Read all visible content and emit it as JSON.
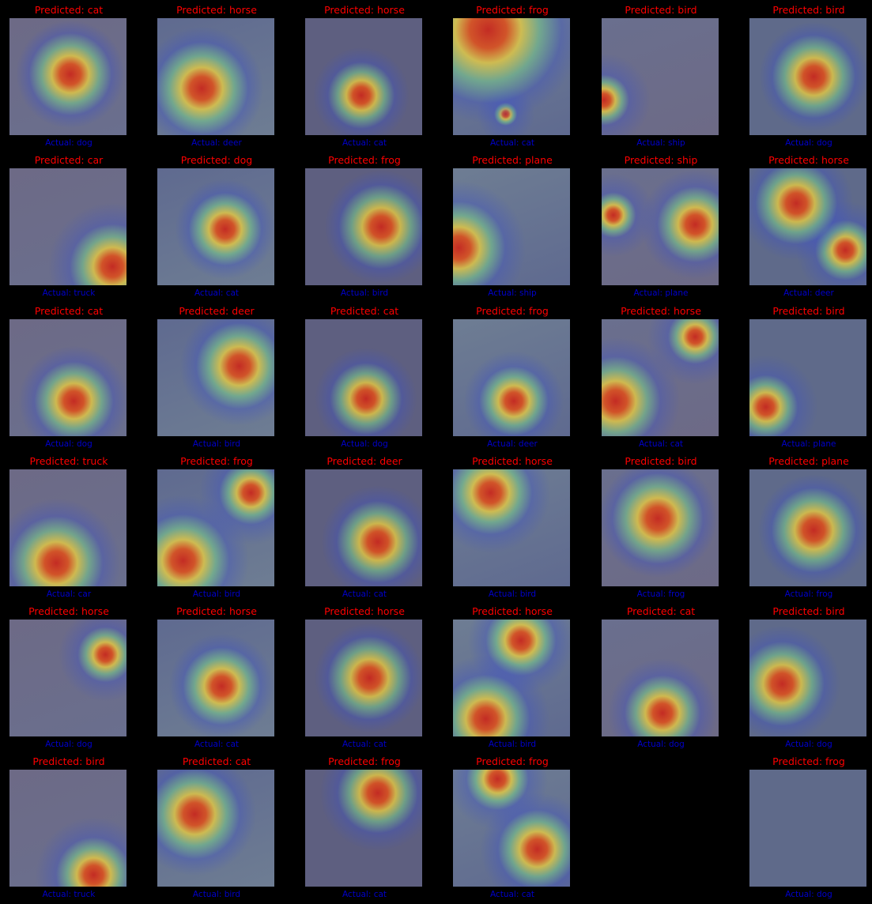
{
  "grid": {
    "cells": [
      {
        "predicted": "Predicted: cat",
        "actual": "Actual: dog"
      },
      {
        "predicted": "Predicted: horse",
        "actual": "Actual: deer"
      },
      {
        "predicted": "Predicted: horse",
        "actual": "Actual: cat"
      },
      {
        "predicted": "Predicted: frog",
        "actual": "Actual: cat"
      },
      {
        "predicted": "Predicted: bird",
        "actual": "Actual: ship"
      },
      {
        "predicted": "Predicted: bird",
        "actual": "Actual: dog"
      },
      {
        "predicted": "Predicted: car",
        "actual": "Actual: truck"
      },
      {
        "predicted": "Predicted: dog",
        "actual": "Actual: cat"
      },
      {
        "predicted": "Predicted: frog",
        "actual": "Actual: bird"
      },
      {
        "predicted": "Predicted: plane",
        "actual": "Actual: ship"
      },
      {
        "predicted": "Predicted: ship",
        "actual": "Actual: plane"
      },
      {
        "predicted": "Predicted: horse",
        "actual": "Actual: deer"
      },
      {
        "predicted": "Predicted: cat",
        "actual": "Actual: dog"
      },
      {
        "predicted": "Predicted: deer",
        "actual": "Actual: bird"
      },
      {
        "predicted": "Predicted: cat",
        "actual": "Actual: dog"
      },
      {
        "predicted": "Predicted: frog",
        "actual": "Actual: deer"
      },
      {
        "predicted": "Predicted: horse",
        "actual": "Actual: cat"
      },
      {
        "predicted": "Predicted: bird",
        "actual": "Actual: plane"
      },
      {
        "predicted": "Predicted: truck",
        "actual": "Actual: car"
      },
      {
        "predicted": "Predicted: frog",
        "actual": "Actual: bird"
      },
      {
        "predicted": "Predicted: deer",
        "actual": "Actual: cat"
      },
      {
        "predicted": "Predicted: horse",
        "actual": "Actual: bird"
      },
      {
        "predicted": "Predicted: bird",
        "actual": "Actual: frog"
      },
      {
        "predicted": "Predicted: plane",
        "actual": "Actual: frog"
      },
      {
        "predicted": "Predicted: horse",
        "actual": "Actual: dog"
      },
      {
        "predicted": "Predicted: horse",
        "actual": "Actual: cat"
      },
      {
        "predicted": "Predicted: horse",
        "actual": "Actual: cat"
      },
      {
        "predicted": "Predicted: horse",
        "actual": "Actual: bird"
      },
      {
        "predicted": "Predicted: cat",
        "actual": "Actual: dog"
      },
      {
        "predicted": "Predicted: bird",
        "actual": "Actual: dog"
      },
      {
        "predicted": "Predicted: bird",
        "actual": "Actual: truck"
      },
      {
        "predicted": "Predicted: cat",
        "actual": "Actual: bird"
      },
      {
        "predicted": "Predicted: frog",
        "actual": "Actual: cat"
      },
      {
        "predicted": "Predicted: frog",
        "actual": "Actual: cat"
      },
      null,
      {
        "predicted": "Predicted: frog",
        "actual": "Actual: dog"
      }
    ]
  }
}
